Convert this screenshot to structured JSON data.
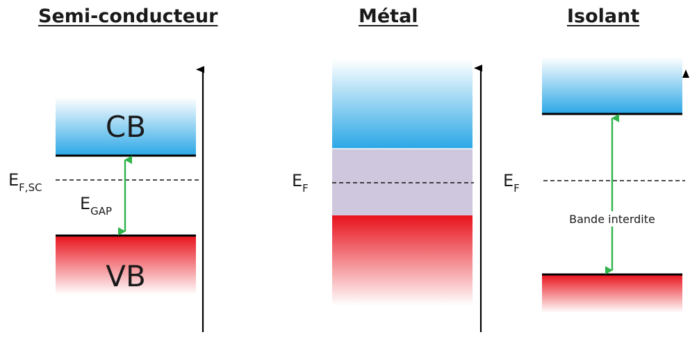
{
  "panels": [
    {
      "title": "Semi-conducteur",
      "cb_label": "CB",
      "vb_label": "VB",
      "fermi_label": {
        "main": "E",
        "sub": "F,SC"
      },
      "gap_label": {
        "main": "E",
        "sub": "GAP"
      }
    },
    {
      "title": "Métal",
      "fermi_label": {
        "main": "E",
        "sub": "F"
      }
    },
    {
      "title": "Isolant",
      "fermi_label": {
        "main": "E",
        "sub": "F"
      },
      "gap_text": "Bande interdite"
    }
  ],
  "colors": {
    "conduction_band": "#2aa7e6",
    "valence_band": "#e8121c",
    "metal_overlap": "#cfc7de",
    "gap_arrow": "#2fb34a",
    "axis": "#000000"
  }
}
